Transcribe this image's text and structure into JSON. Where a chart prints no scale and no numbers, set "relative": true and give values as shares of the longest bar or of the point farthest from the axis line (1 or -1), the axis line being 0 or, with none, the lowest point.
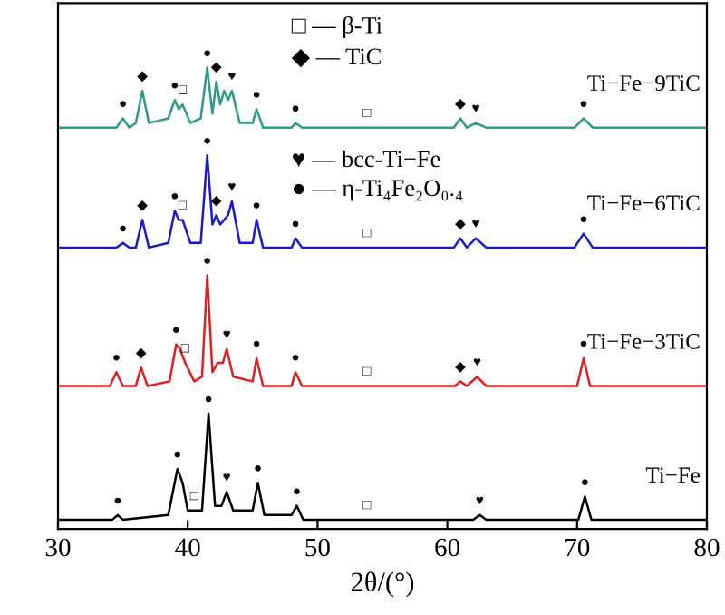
{
  "chart_data": {
    "type": "line",
    "relative": true,
    "xlabel": "2θ/(°)",
    "xlim": [
      30,
      80
    ],
    "xticks": [
      30,
      40,
      50,
      60,
      70,
      80
    ],
    "tick_labels": "x",
    "legend": false,
    "grid": false,
    "series": [
      {
        "name": "Ti−Fe−9TiC",
        "color": "#2e9a8a",
        "x": [
          30,
          34.5,
          35.0,
          35.5,
          36.0,
          36.5,
          37.0,
          38.5,
          39.0,
          39.3,
          39.6,
          40.2,
          41.0,
          41.5,
          41.9,
          42.2,
          42.5,
          42.8,
          43.1,
          43.4,
          44.0,
          45.0,
          45.3,
          45.8,
          48.0,
          48.3,
          48.8,
          60.5,
          61.0,
          61.5,
          62.2,
          63,
          69.8,
          70.5,
          71.2,
          80
        ],
        "values": [
          0.87,
          0.87,
          0.89,
          0.87,
          0.88,
          0.95,
          0.88,
          0.89,
          0.93,
          0.91,
          0.92,
          0.88,
          0.89,
          1.0,
          0.9,
          0.97,
          0.92,
          0.95,
          0.93,
          0.95,
          0.88,
          0.88,
          0.91,
          0.87,
          0.87,
          0.88,
          0.87,
          0.87,
          0.89,
          0.87,
          0.88,
          0.87,
          0.87,
          0.89,
          0.87,
          0.87
        ]
      },
      {
        "name": "Ti−Fe−6TiC",
        "color": "#1a1acc",
        "x": [
          30,
          34.5,
          35.0,
          35.5,
          36.0,
          36.5,
          37.0,
          38.5,
          39.0,
          39.3,
          39.6,
          40.2,
          41.0,
          41.5,
          41.9,
          42.2,
          42.5,
          42.8,
          43.1,
          43.4,
          44.0,
          45.0,
          45.3,
          45.8,
          48.0,
          48.3,
          48.8,
          60.5,
          61.0,
          61.5,
          62.2,
          63,
          69.8,
          70.5,
          71.2,
          80
        ],
        "values": [
          0.61,
          0.61,
          0.62,
          0.61,
          0.61,
          0.67,
          0.61,
          0.62,
          0.69,
          0.67,
          0.67,
          0.62,
          0.62,
          0.81,
          0.66,
          0.68,
          0.66,
          0.67,
          0.68,
          0.71,
          0.62,
          0.62,
          0.67,
          0.61,
          0.61,
          0.63,
          0.61,
          0.61,
          0.63,
          0.61,
          0.63,
          0.61,
          0.61,
          0.64,
          0.61,
          0.61
        ]
      },
      {
        "name": "Ti−Fe−3TiC",
        "color": "#e02020",
        "x": [
          30,
          34.0,
          34.5,
          35.0,
          36.0,
          36.4,
          36.9,
          38.6,
          39.1,
          39.4,
          39.8,
          40.5,
          41.1,
          41.5,
          41.9,
          42.3,
          42.7,
          43.0,
          43.5,
          45.0,
          45.3,
          45.8,
          48.0,
          48.3,
          48.8,
          60.6,
          61.0,
          61.5,
          62.3,
          63.0,
          70.0,
          70.5,
          71.0,
          80
        ],
        "values": [
          0.31,
          0.31,
          0.34,
          0.31,
          0.31,
          0.35,
          0.31,
          0.32,
          0.4,
          0.39,
          0.36,
          0.32,
          0.33,
          0.55,
          0.34,
          0.36,
          0.36,
          0.39,
          0.33,
          0.32,
          0.37,
          0.31,
          0.31,
          0.34,
          0.31,
          0.31,
          0.32,
          0.31,
          0.33,
          0.31,
          0.31,
          0.37,
          0.31,
          0.31
        ]
      },
      {
        "name": "Ti−Fe",
        "color": "#000000",
        "x": [
          30,
          34.2,
          34.6,
          35.0,
          38.5,
          39.2,
          39.6,
          40.0,
          41.1,
          41.6,
          42.1,
          42.6,
          43.0,
          43.5,
          45.0,
          45.4,
          45.9,
          48.0,
          48.4,
          48.9,
          62.0,
          62.5,
          63.0,
          70.1,
          70.6,
          71.1,
          80
        ],
        "values": [
          0.02,
          0.02,
          0.03,
          0.02,
          0.03,
          0.13,
          0.1,
          0.04,
          0.04,
          0.25,
          0.05,
          0.05,
          0.08,
          0.04,
          0.04,
          0.1,
          0.03,
          0.03,
          0.05,
          0.02,
          0.02,
          0.03,
          0.02,
          0.02,
          0.07,
          0.02,
          0.02
        ]
      }
    ],
    "annotations": [
      "□ — β-Ti",
      "◆ — TiC",
      "♥ — bcc-Ti−Fe",
      "● — η-Ti₄Fe₂O₀.₄",
      {
        "text": "●",
        "x": 35.0,
        "y": 0.89
      },
      {
        "text": "◆",
        "x": 36.5,
        "y": 0.95
      },
      {
        "text": "●",
        "x": 39.0,
        "y": 0.93
      },
      {
        "text": "□",
        "x": 39.6,
        "y": 0.92
      },
      {
        "text": "●",
        "x": 41.5,
        "y": 1.0
      },
      {
        "text": "◆",
        "x": 42.2,
        "y": 0.97
      },
      {
        "text": "♥",
        "x": 43.4,
        "y": 0.95
      },
      {
        "text": "●",
        "x": 45.3,
        "y": 0.91
      },
      {
        "text": "●",
        "x": 48.3,
        "y": 0.88
      },
      {
        "text": "□",
        "x": 53.8,
        "y": 0.87
      },
      {
        "text": "◆",
        "x": 61.0,
        "y": 0.89
      },
      {
        "text": "♥",
        "x": 62.2,
        "y": 0.88
      },
      {
        "text": "●",
        "x": 70.5,
        "y": 0.89
      },
      {
        "text": "●",
        "x": 35.0,
        "y": 0.62
      },
      {
        "text": "◆",
        "x": 36.5,
        "y": 0.67
      },
      {
        "text": "●",
        "x": 39.0,
        "y": 0.69
      },
      {
        "text": "□",
        "x": 39.6,
        "y": 0.67
      },
      {
        "text": "●",
        "x": 41.5,
        "y": 0.81
      },
      {
        "text": "◆",
        "x": 42.2,
        "y": 0.68
      },
      {
        "text": "♥",
        "x": 43.4,
        "y": 0.71
      },
      {
        "text": "●",
        "x": 45.3,
        "y": 0.67
      },
      {
        "text": "●",
        "x": 48.3,
        "y": 0.63
      },
      {
        "text": "□",
        "x": 53.8,
        "y": 0.61
      },
      {
        "text": "◆",
        "x": 61.0,
        "y": 0.63
      },
      {
        "text": "♥",
        "x": 62.2,
        "y": 0.63
      },
      {
        "text": "●",
        "x": 70.5,
        "y": 0.64
      },
      {
        "text": "●",
        "x": 34.5,
        "y": 0.34
      },
      {
        "text": "◆",
        "x": 36.4,
        "y": 0.35
      },
      {
        "text": "●",
        "x": 39.1,
        "y": 0.4
      },
      {
        "text": "□",
        "x": 39.8,
        "y": 0.36
      },
      {
        "text": "●",
        "x": 41.5,
        "y": 0.55
      },
      {
        "text": "♥",
        "x": 43.0,
        "y": 0.39
      },
      {
        "text": "●",
        "x": 45.3,
        "y": 0.37
      },
      {
        "text": "●",
        "x": 48.3,
        "y": 0.34
      },
      {
        "text": "□",
        "x": 53.8,
        "y": 0.31
      },
      {
        "text": "◆",
        "x": 61.0,
        "y": 0.32
      },
      {
        "text": "♥",
        "x": 62.3,
        "y": 0.33
      },
      {
        "text": "●",
        "x": 70.5,
        "y": 0.37
      },
      {
        "text": "●",
        "x": 34.6,
        "y": 0.03
      },
      {
        "text": "●",
        "x": 39.2,
        "y": 0.13
      },
      {
        "text": "□",
        "x": 40.5,
        "y": 0.04
      },
      {
        "text": "●",
        "x": 41.6,
        "y": 0.25
      },
      {
        "text": "♥",
        "x": 43.0,
        "y": 0.08
      },
      {
        "text": "●",
        "x": 45.4,
        "y": 0.1
      },
      {
        "text": "●",
        "x": 48.4,
        "y": 0.05
      },
      {
        "text": "□",
        "x": 53.8,
        "y": 0.02
      },
      {
        "text": "♥",
        "x": 62.5,
        "y": 0.03
      },
      {
        "text": "●",
        "x": 70.6,
        "y": 0.07
      }
    ]
  }
}
